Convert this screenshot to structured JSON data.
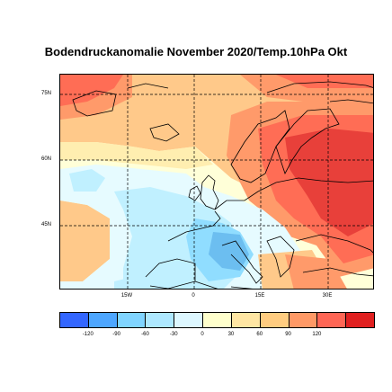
{
  "title": "Bodendruckanomalie November 2020/Temp.10hPa Okt",
  "lat_labels": [
    "75N",
    "60N",
    "45N"
  ],
  "lon_labels": [
    "15W",
    "0",
    "15E",
    "30E"
  ],
  "legend": {
    "colors": [
      "#3366ff",
      "#4da6ff",
      "#80d4ff",
      "#aee8ff",
      "#ddf7ff",
      "#ffffcc",
      "#ffe6a3",
      "#ffcc80",
      "#ff9966",
      "#ff6655",
      "#e02020"
    ],
    "ticks": [
      "-120",
      "-90",
      "-60",
      "-30",
      "0",
      "30",
      "60",
      "90",
      "120"
    ]
  },
  "colors": {
    "dark_red": "#e8403a",
    "red": "#ff6d55",
    "salmon": "#ff9a6a",
    "light_orange": "#ffc98a",
    "pale_yellow": "#ffeeb0",
    "cream": "#ffffd8",
    "pale_cyan": "#e6fbff",
    "light_cyan": "#c0f0ff",
    "cyan": "#90ddff",
    "blue": "#6cbef0"
  }
}
